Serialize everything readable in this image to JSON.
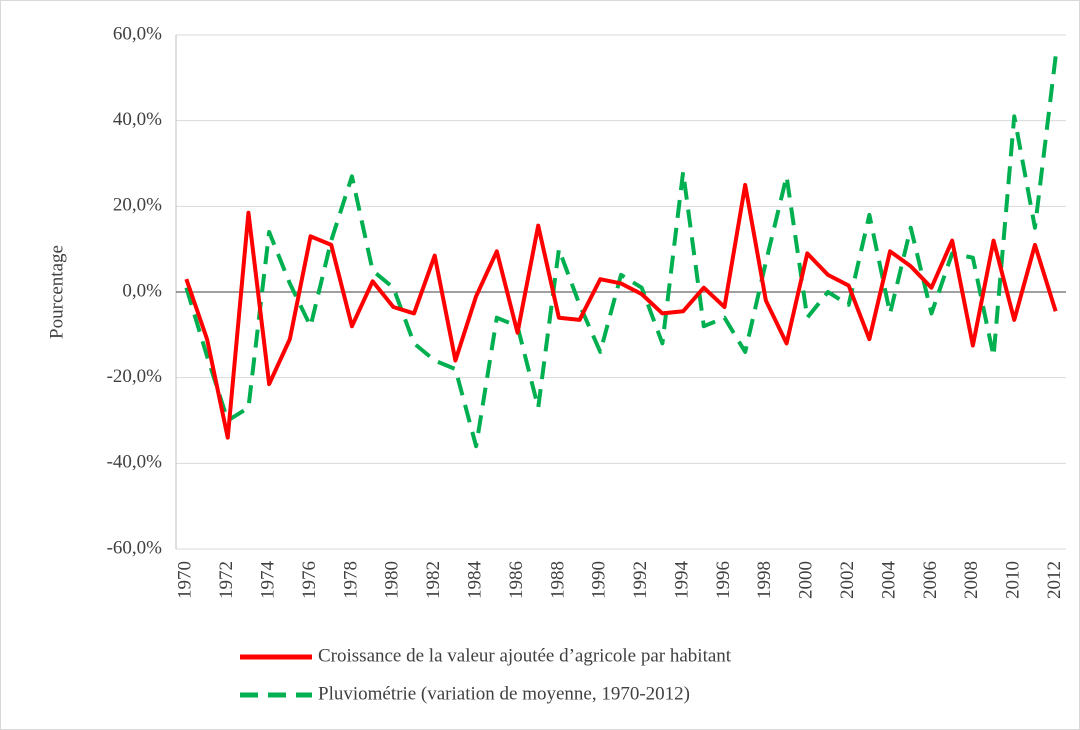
{
  "chart_data": {
    "type": "line",
    "y_label": "Pourcentage",
    "categories": [
      "1970",
      null,
      "1972",
      null,
      "1974",
      null,
      "1976",
      null,
      "1978",
      null,
      "1980",
      null,
      "1982",
      null,
      "1984",
      null,
      "1986",
      null,
      "1988",
      null,
      "1990",
      null,
      "1992",
      null,
      "1994",
      null,
      "1996",
      null,
      "1998",
      null,
      "2000",
      null,
      "2002",
      null,
      "2004",
      null,
      "2006",
      null,
      "2008",
      null,
      "2010",
      null,
      "2012"
    ],
    "series": [
      {
        "name": "Croissance de la valeur ajoutée d’agricole par habitant",
        "color": "#ff0000",
        "dash": false,
        "values": [
          3,
          -11,
          -34,
          18.5,
          -21.5,
          -11,
          13,
          11,
          -8,
          2.5,
          -3.5,
          -5,
          8.5,
          -16,
          -1,
          9.5,
          -9.5,
          15.5,
          -6,
          -6.5,
          3,
          2,
          -0.5,
          -5,
          -4.5,
          1,
          -3.5,
          25,
          -2,
          -12,
          9,
          4,
          1.5,
          -11,
          9.5,
          6,
          1,
          12,
          -12.5,
          12,
          -6.5,
          11,
          -4.5
        ]
      },
      {
        "name": "Pluviométrie (variation de moyenne, 1970-2012)",
        "color": "#00b050",
        "dash": true,
        "values": [
          1,
          -15,
          -30,
          -27,
          14,
          2,
          -8,
          12,
          27,
          5,
          1,
          -12,
          -16,
          -18,
          -36,
          -6,
          -8,
          -27,
          10,
          -3,
          -14,
          4,
          1,
          -12,
          28,
          -8,
          -6,
          -14,
          7,
          27,
          -6,
          0,
          -3,
          18,
          -5,
          15,
          -5,
          9,
          8,
          -15,
          41,
          15,
          55
        ]
      }
    ],
    "ylim": [
      -60,
      60
    ],
    "yticks": [
      {
        "value": -60,
        "label": "-60,0%"
      },
      {
        "value": -40,
        "label": "-40,0%"
      },
      {
        "value": -20,
        "label": "-20,0%"
      },
      {
        "value": 0,
        "label": "0,0%"
      },
      {
        "value": 20,
        "label": "20,0%"
      },
      {
        "value": 40,
        "label": "40,0%"
      },
      {
        "value": 60,
        "label": "60,0%"
      }
    ],
    "grid": true,
    "legend": "bottom"
  }
}
